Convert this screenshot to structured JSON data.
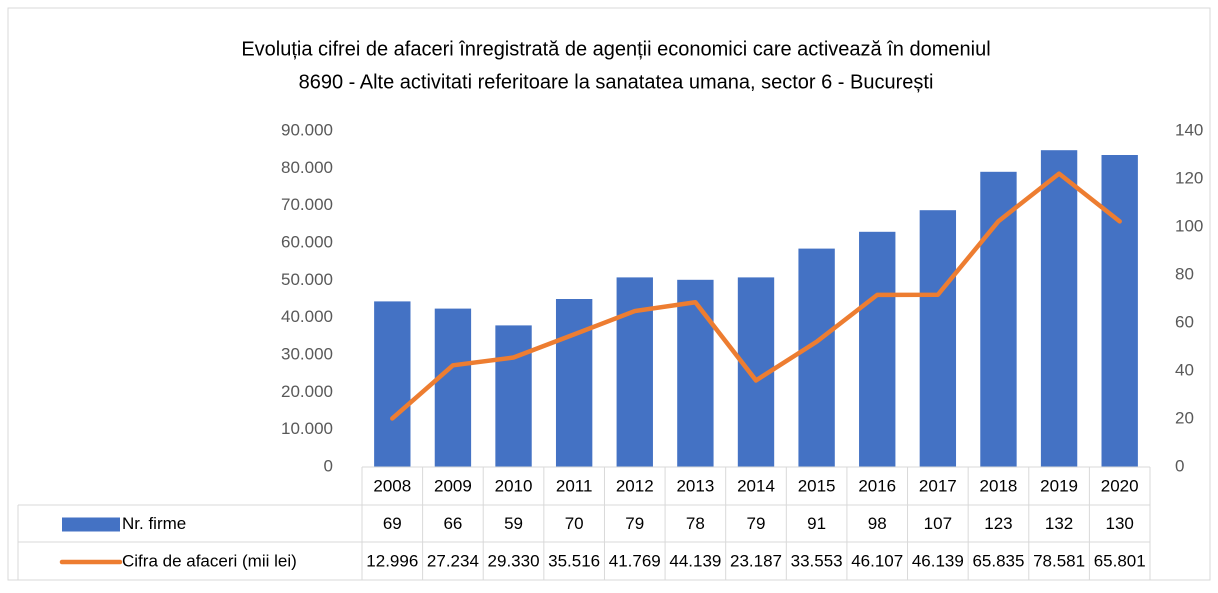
{
  "chart_data": {
    "type": "bar",
    "title": [
      "Evoluția cifrei de afaceri înregistrată de agenții economici care activează în domeniul",
      "8690 - Alte activitati referitoare la sanatatea umana, sector 6 - București"
    ],
    "categories": [
      "2008",
      "2009",
      "2010",
      "2011",
      "2012",
      "2013",
      "2014",
      "2015",
      "2016",
      "2017",
      "2018",
      "2019",
      "2020"
    ],
    "series": [
      {
        "name": "Nr. firme",
        "type": "bar",
        "axis": "y2",
        "color": "#4472c4",
        "values": [
          69,
          66,
          59,
          70,
          79,
          78,
          79,
          91,
          98,
          107,
          123,
          132,
          130
        ]
      },
      {
        "name": "Cifra de afaceri (mii lei)",
        "type": "line",
        "color": "#ed7d31",
        "values": [
          12996,
          27234,
          29330,
          35516,
          41769,
          44139,
          23187,
          33553,
          46107,
          46139,
          65835,
          78581,
          65801
        ],
        "value_labels": [
          "12.996",
          "27.234",
          "29.330",
          "35.516",
          "41.769",
          "44.139",
          "23.187",
          "33.553",
          "46.107",
          "46.139",
          "65.835",
          "78.581",
          "65.801"
        ]
      }
    ],
    "ylim": [
      0,
      90000
    ],
    "yticks": [
      0,
      {
        "value": 10000,
        "label": "10.000"
      },
      {
        "value": 20000,
        "label": "20.000"
      },
      {
        "value": 30000,
        "label": "30.000"
      },
      {
        "value": 40000,
        "label": "40.000"
      },
      {
        "value": 50000,
        "label": "50.000"
      },
      {
        "value": 60000,
        "label": "60.000"
      },
      {
        "value": 70000,
        "label": "70.000"
      },
      {
        "value": 80000,
        "label": "80.000"
      },
      {
        "value": 90000,
        "label": "90.000"
      }
    ],
    "y2lim": [
      0,
      140
    ],
    "y2ticks": [
      0,
      20,
      40,
      60,
      80,
      100,
      120,
      140
    ]
  }
}
